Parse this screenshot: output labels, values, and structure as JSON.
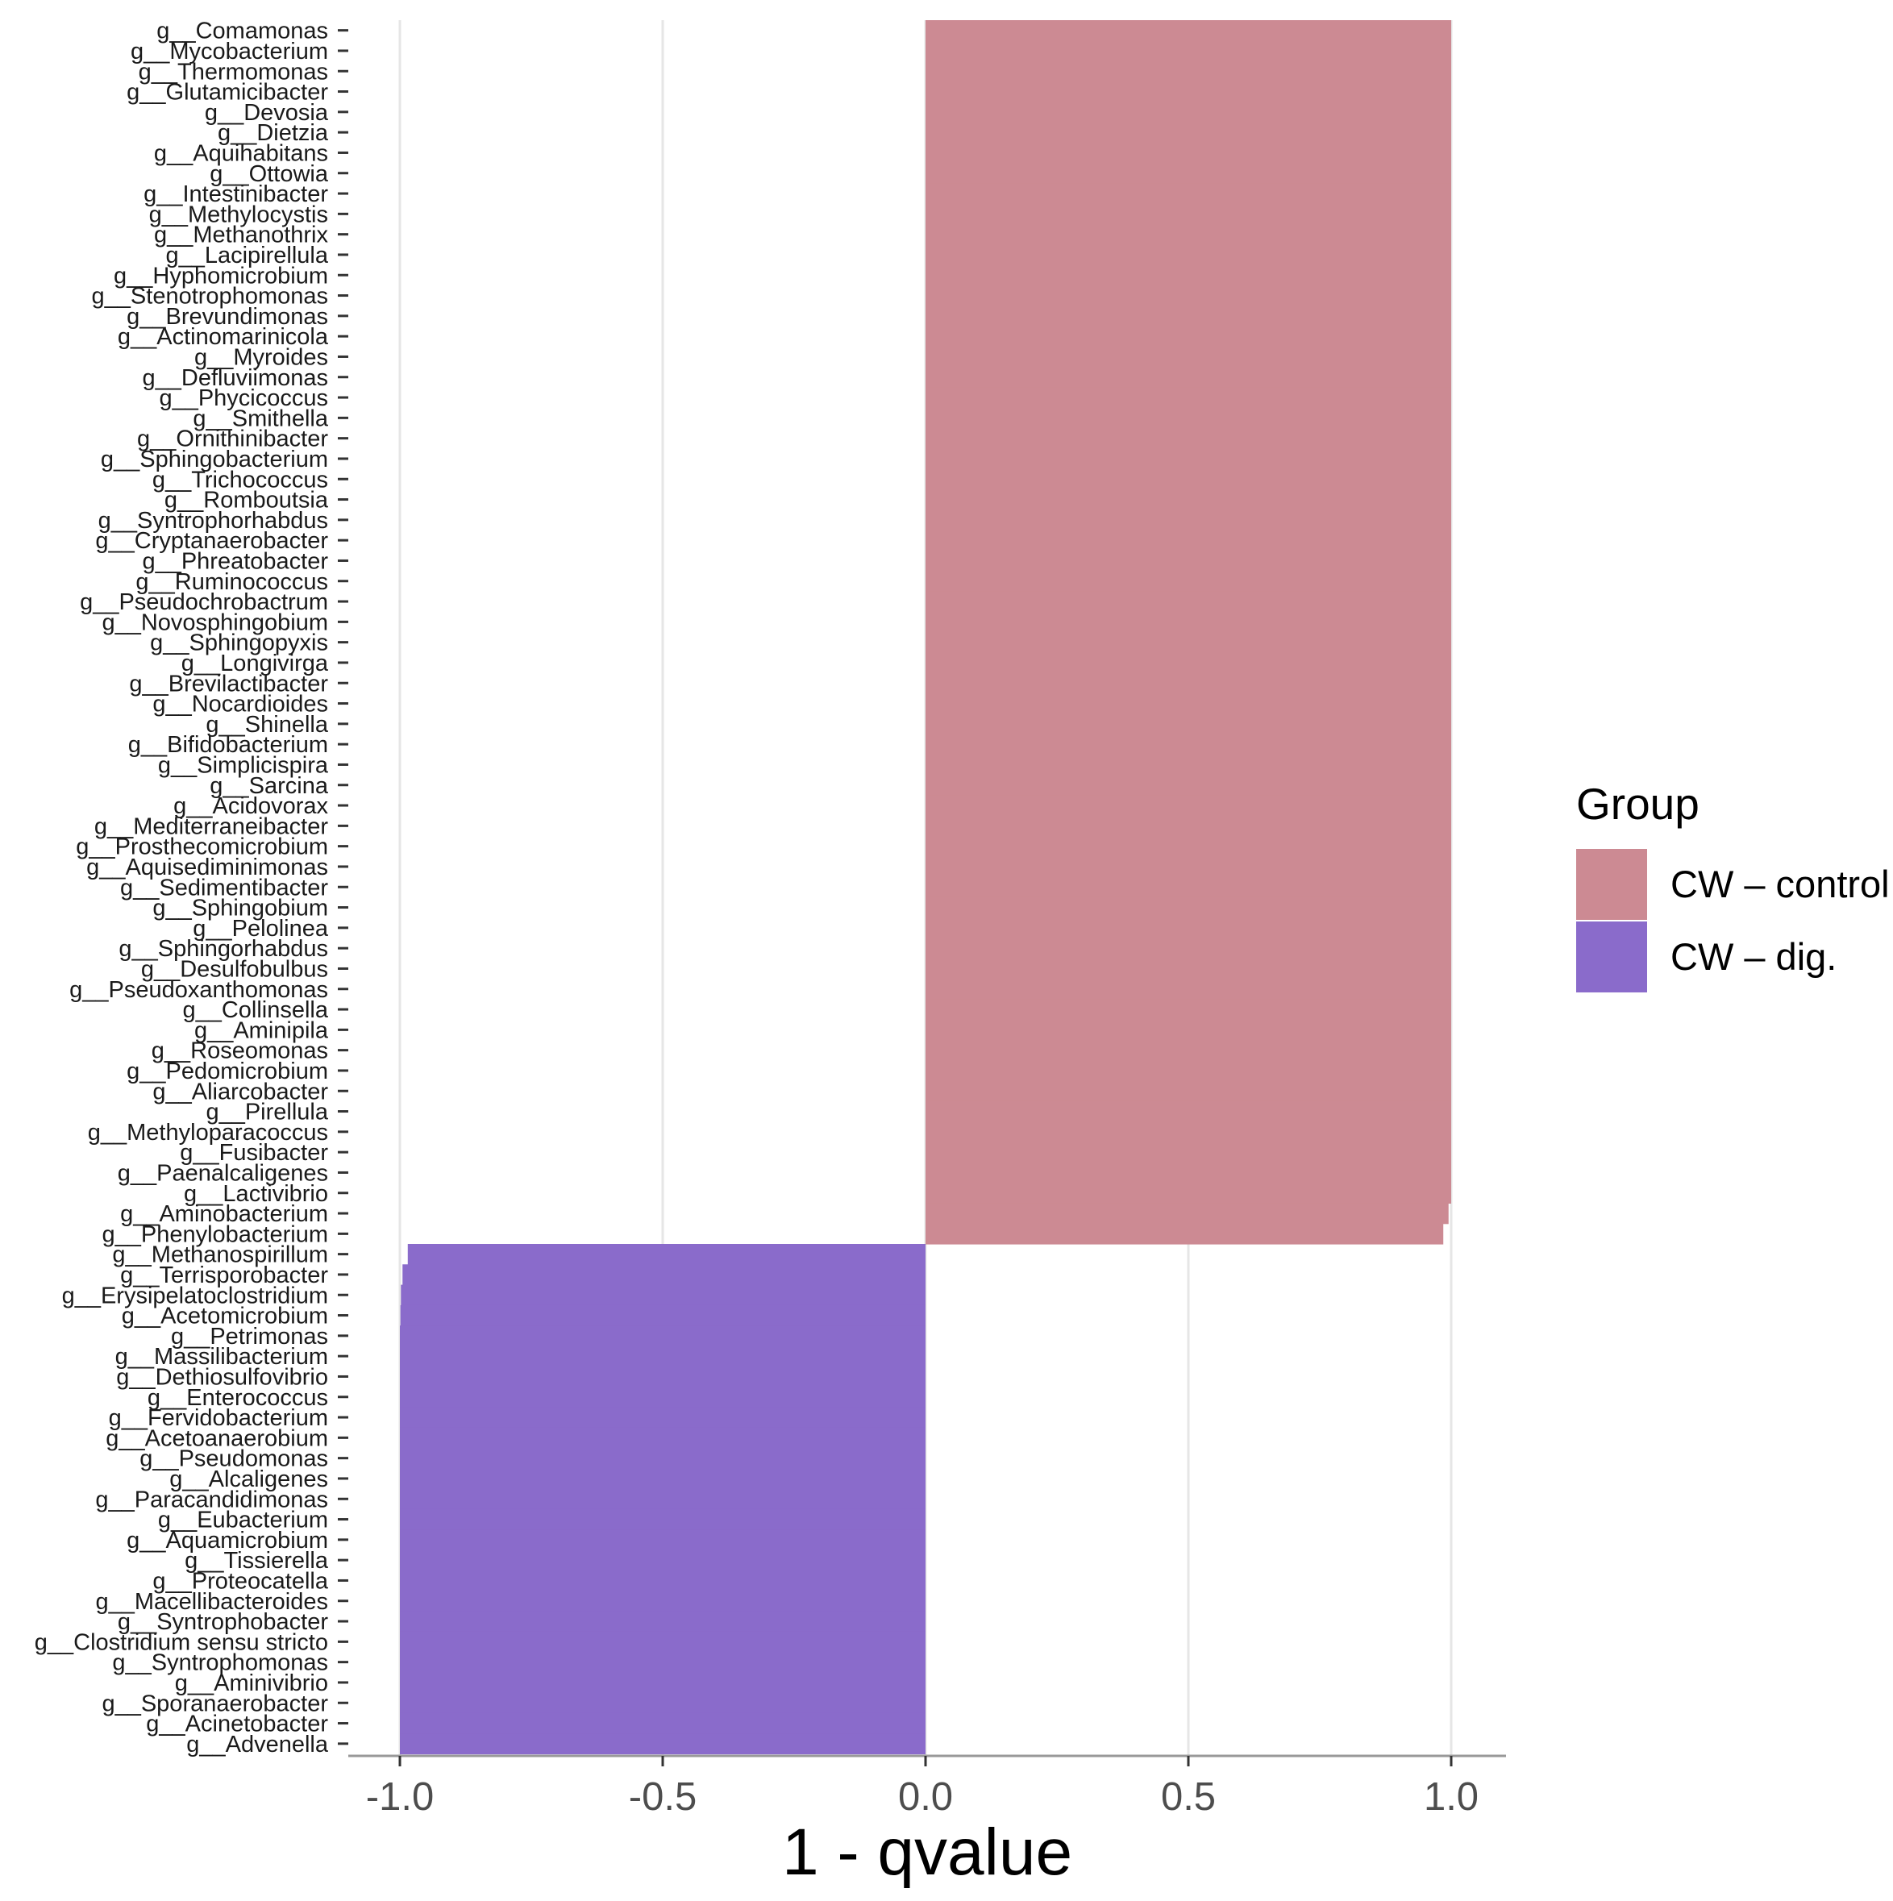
{
  "chart_data": {
    "type": "bar",
    "orientation": "horizontal",
    "title": "",
    "xlabel": "1 - qvalue",
    "ylabel": "",
    "xlim": [
      -1.1,
      1.1
    ],
    "xticks": [
      -1.0,
      -0.5,
      0.0,
      0.5,
      1.0
    ],
    "xtick_labels": [
      "-1.0",
      "-0.5",
      "0.0",
      "0.5",
      "1.0"
    ],
    "grid": "vertical major",
    "legend": {
      "title": "Group",
      "position": "right",
      "entries": [
        {
          "label": "CW – control",
          "color": "#cc8a93"
        },
        {
          "label": "CW – dig.",
          "color": "#8a6bcb"
        }
      ]
    },
    "series": [
      {
        "name": "CW – control",
        "color": "#cc8a93"
      },
      {
        "name": "CW – dig.",
        "color": "#8a6bcb"
      }
    ],
    "bars": [
      {
        "label": "g__Comamonas",
        "value": 1.0,
        "group": "CW – control"
      },
      {
        "label": "g__Mycobacterium",
        "value": 1.0,
        "group": "CW – control"
      },
      {
        "label": "g__Thermomonas",
        "value": 1.0,
        "group": "CW – control"
      },
      {
        "label": "g__Glutamicibacter",
        "value": 1.0,
        "group": "CW – control"
      },
      {
        "label": "g__Devosia",
        "value": 1.0,
        "group": "CW – control"
      },
      {
        "label": "g__Dietzia",
        "value": 1.0,
        "group": "CW – control"
      },
      {
        "label": "g__Aquihabitans",
        "value": 1.0,
        "group": "CW – control"
      },
      {
        "label": "g__Ottowia",
        "value": 1.0,
        "group": "CW – control"
      },
      {
        "label": "g__Intestinibacter",
        "value": 1.0,
        "group": "CW – control"
      },
      {
        "label": "g__Methylocystis",
        "value": 1.0,
        "group": "CW – control"
      },
      {
        "label": "g__Methanothrix",
        "value": 1.0,
        "group": "CW – control"
      },
      {
        "label": "g__Lacipirellula",
        "value": 1.0,
        "group": "CW – control"
      },
      {
        "label": "g__Hyphomicrobium",
        "value": 1.0,
        "group": "CW – control"
      },
      {
        "label": "g__Stenotrophomonas",
        "value": 1.0,
        "group": "CW – control"
      },
      {
        "label": "g__Brevundimonas",
        "value": 1.0,
        "group": "CW – control"
      },
      {
        "label": "g__Actinomarinicola",
        "value": 1.0,
        "group": "CW – control"
      },
      {
        "label": "g__Myroides",
        "value": 1.0,
        "group": "CW – control"
      },
      {
        "label": "g__Defluviimonas",
        "value": 1.0,
        "group": "CW – control"
      },
      {
        "label": "g__Phycicoccus",
        "value": 1.0,
        "group": "CW – control"
      },
      {
        "label": "g__Smithella",
        "value": 1.0,
        "group": "CW – control"
      },
      {
        "label": "g__Ornithinibacter",
        "value": 1.0,
        "group": "CW – control"
      },
      {
        "label": "g__Sphingobacterium",
        "value": 1.0,
        "group": "CW – control"
      },
      {
        "label": "g__Trichococcus",
        "value": 1.0,
        "group": "CW – control"
      },
      {
        "label": "g__Romboutsia",
        "value": 1.0,
        "group": "CW – control"
      },
      {
        "label": "g__Syntrophorhabdus",
        "value": 1.0,
        "group": "CW – control"
      },
      {
        "label": "g__Cryptanaerobacter",
        "value": 1.0,
        "group": "CW – control"
      },
      {
        "label": "g__Phreatobacter",
        "value": 1.0,
        "group": "CW – control"
      },
      {
        "label": "g__Ruminococcus",
        "value": 1.0,
        "group": "CW – control"
      },
      {
        "label": "g__Pseudochrobactrum",
        "value": 1.0,
        "group": "CW – control"
      },
      {
        "label": "g__Novosphingobium",
        "value": 1.0,
        "group": "CW – control"
      },
      {
        "label": "g__Sphingopyxis",
        "value": 1.0,
        "group": "CW – control"
      },
      {
        "label": "g__Longivirga",
        "value": 1.0,
        "group": "CW – control"
      },
      {
        "label": "g__Brevilactibacter",
        "value": 1.0,
        "group": "CW – control"
      },
      {
        "label": "g__Nocardioides",
        "value": 1.0,
        "group": "CW – control"
      },
      {
        "label": "g__Shinella",
        "value": 1.0,
        "group": "CW – control"
      },
      {
        "label": "g__Bifidobacterium",
        "value": 1.0,
        "group": "CW – control"
      },
      {
        "label": "g__Simplicispira",
        "value": 1.0,
        "group": "CW – control"
      },
      {
        "label": "g__Sarcina",
        "value": 1.0,
        "group": "CW – control"
      },
      {
        "label": "g__Acidovorax",
        "value": 1.0,
        "group": "CW – control"
      },
      {
        "label": "g__Mediterraneibacter",
        "value": 1.0,
        "group": "CW – control"
      },
      {
        "label": "g__Prosthecomicrobium",
        "value": 1.0,
        "group": "CW – control"
      },
      {
        "label": "g__Aquisediminimonas",
        "value": 1.0,
        "group": "CW – control"
      },
      {
        "label": "g__Sedimentibacter",
        "value": 1.0,
        "group": "CW – control"
      },
      {
        "label": "g__Sphingobium",
        "value": 1.0,
        "group": "CW – control"
      },
      {
        "label": "g__Pelolinea",
        "value": 1.0,
        "group": "CW – control"
      },
      {
        "label": "g__Sphingorhabdus",
        "value": 1.0,
        "group": "CW – control"
      },
      {
        "label": "g__Desulfobulbus",
        "value": 1.0,
        "group": "CW – control"
      },
      {
        "label": "g__Pseudoxanthomonas",
        "value": 1.0,
        "group": "CW – control"
      },
      {
        "label": "g__Collinsella",
        "value": 1.0,
        "group": "CW – control"
      },
      {
        "label": "g__Aminipila",
        "value": 1.0,
        "group": "CW – control"
      },
      {
        "label": "g__Roseomonas",
        "value": 1.0,
        "group": "CW – control"
      },
      {
        "label": "g__Pedomicrobium",
        "value": 1.0,
        "group": "CW – control"
      },
      {
        "label": "g__Aliarcobacter",
        "value": 1.0,
        "group": "CW – control"
      },
      {
        "label": "g__Pirellula",
        "value": 1.0,
        "group": "CW – control"
      },
      {
        "label": "g__Methyloparacoccus",
        "value": 1.0,
        "group": "CW – control"
      },
      {
        "label": "g__Fusibacter",
        "value": 1.0,
        "group": "CW – control"
      },
      {
        "label": "g__Paenalcaligenes",
        "value": 1.0,
        "group": "CW – control"
      },
      {
        "label": "g__Lactivibrio",
        "value": 1.0,
        "group": "CW – control"
      },
      {
        "label": "g__Aminobacterium",
        "value": 0.995,
        "group": "CW – control"
      },
      {
        "label": "g__Phenylobacterium",
        "value": 0.985,
        "group": "CW – control"
      },
      {
        "label": "g__Methanospirillum",
        "value": -0.985,
        "group": "CW – dig."
      },
      {
        "label": "g__Terrisporobacter",
        "value": -0.995,
        "group": "CW – dig."
      },
      {
        "label": "g__Erysipelatoclostridium",
        "value": -0.998,
        "group": "CW – dig."
      },
      {
        "label": "g__Acetomicrobium",
        "value": -0.999,
        "group": "CW – dig."
      },
      {
        "label": "g__Petrimonas",
        "value": -1.0,
        "group": "CW – dig."
      },
      {
        "label": "g__Massilibacterium",
        "value": -1.0,
        "group": "CW – dig."
      },
      {
        "label": "g__Dethiosulfovibrio",
        "value": -1.0,
        "group": "CW – dig."
      },
      {
        "label": "g__Enterococcus",
        "value": -1.0,
        "group": "CW – dig."
      },
      {
        "label": "g__Fervidobacterium",
        "value": -1.0,
        "group": "CW – dig."
      },
      {
        "label": "g__Acetoanaerobium",
        "value": -1.0,
        "group": "CW – dig."
      },
      {
        "label": "g__Pseudomonas",
        "value": -1.0,
        "group": "CW – dig."
      },
      {
        "label": "g__Alcaligenes",
        "value": -1.0,
        "group": "CW – dig."
      },
      {
        "label": "g__Paracandidimonas",
        "value": -1.0,
        "group": "CW – dig."
      },
      {
        "label": "g__Eubacterium",
        "value": -1.0,
        "group": "CW – dig."
      },
      {
        "label": "g__Aquamicrobium",
        "value": -1.0,
        "group": "CW – dig."
      },
      {
        "label": "g__Tissierella",
        "value": -1.0,
        "group": "CW – dig."
      },
      {
        "label": "g__Proteocatella",
        "value": -1.0,
        "group": "CW – dig."
      },
      {
        "label": "g__Macellibacteroides",
        "value": -1.0,
        "group": "CW – dig."
      },
      {
        "label": "g__Syntrophobacter",
        "value": -1.0,
        "group": "CW – dig."
      },
      {
        "label": "g__Clostridium sensu stricto",
        "value": -1.0,
        "group": "CW – dig."
      },
      {
        "label": "g__Syntrophomonas",
        "value": -1.0,
        "group": "CW – dig."
      },
      {
        "label": "g__Aminivibrio",
        "value": -1.0,
        "group": "CW – dig."
      },
      {
        "label": "g__Sporanaerobacter",
        "value": -1.0,
        "group": "CW – dig."
      },
      {
        "label": "g__Acinetobacter",
        "value": -1.0,
        "group": "CW – dig."
      },
      {
        "label": "g__Advenella",
        "value": -1.0,
        "group": "CW – dig."
      }
    ]
  }
}
